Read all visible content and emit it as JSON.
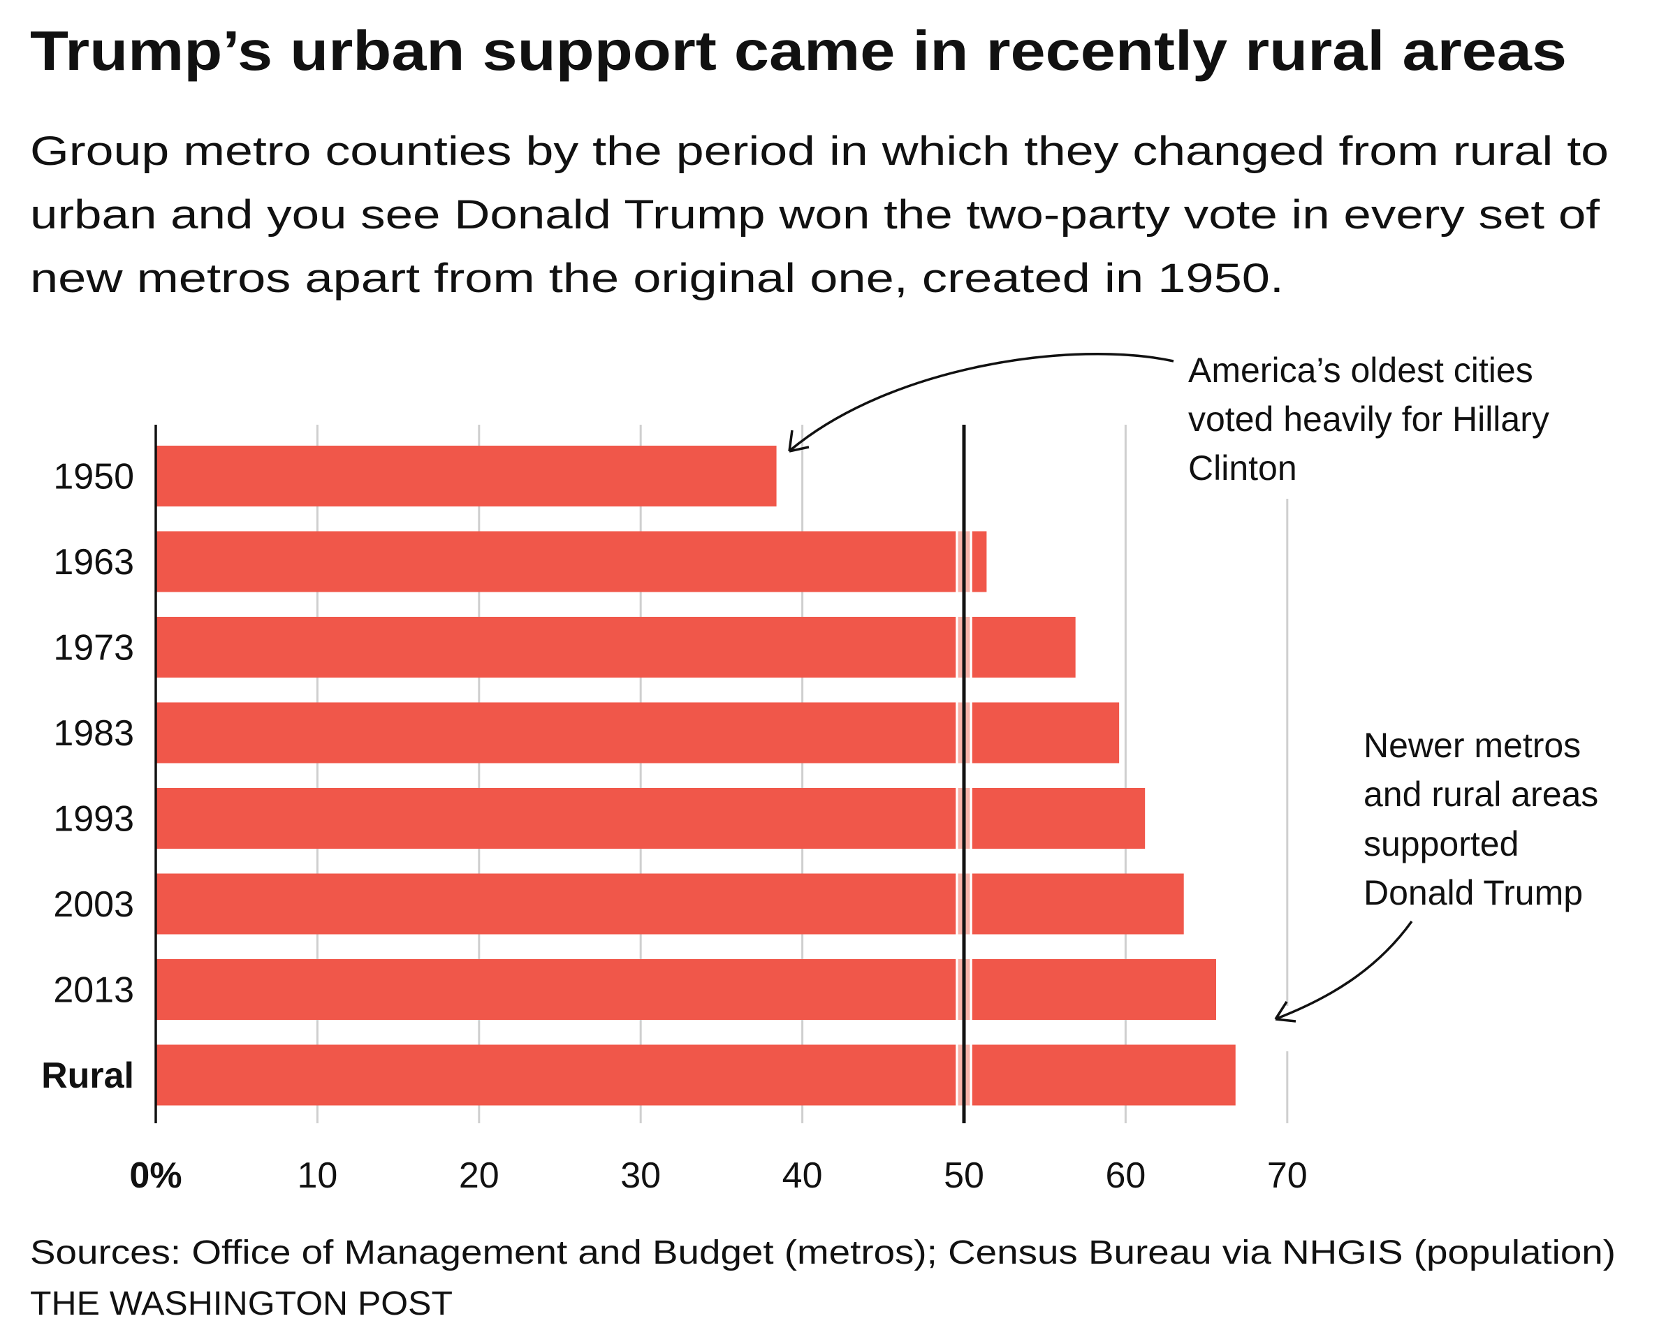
{
  "title": "Trump’s urban support came in recently rural areas",
  "subtitle_lines": [
    "Group metro counties by the period in which they changed from rural to",
    "urban and you see Donald Trump won the two-party vote in every set of",
    "new metros apart from the original one, created in 1950."
  ],
  "annotations": {
    "oldest": [
      "America’s oldest cities",
      "voted heavily for Hillary",
      "Clinton"
    ],
    "newer": [
      "Newer metros",
      "and rural areas",
      "supported",
      "Donald Trump"
    ]
  },
  "footer": {
    "sources": "Sources: Office of Management and Budget (metros); Census Bureau via NHGIS (population)",
    "credit": "THE WASHINGTON POST"
  },
  "chart_data": {
    "type": "bar",
    "orientation": "horizontal",
    "categories": [
      "1950",
      "1963",
      "1973",
      "1983",
      "1993",
      "2003",
      "2013",
      "Rural"
    ],
    "values": [
      38.4,
      51.4,
      56.9,
      59.6,
      61.2,
      63.6,
      65.6,
      66.8
    ],
    "xlim": [
      0,
      70
    ],
    "xticks": [
      "0%",
      "10",
      "20",
      "30",
      "40",
      "50",
      "60",
      "70"
    ],
    "reference_line": 50,
    "grid": true,
    "bar_color": "#F0574A"
  }
}
